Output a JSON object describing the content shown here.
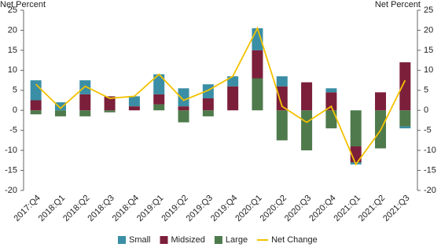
{
  "chart_data": {
    "type": "bar",
    "stacked": true,
    "ylabel": "Net Percent",
    "y2label": "Net Percent",
    "categories": [
      "2017:Q4",
      "2018:Q1",
      "2018:Q2",
      "2018:Q3",
      "2018:Q4",
      "2019:Q1",
      "2019:Q2",
      "2019:Q3",
      "2019:Q4",
      "2020:Q1",
      "2020:Q2",
      "2020:Q3",
      "2020:Q4",
      "2021:Q1",
      "2021:Q2",
      "2021:Q3"
    ],
    "series": [
      {
        "name": "Small",
        "color": "#3a8ea5",
        "values": [
          5,
          2,
          3.5,
          0,
          2.5,
          5,
          4.5,
          3.5,
          2.5,
          5.5,
          2.5,
          0,
          1,
          -0.5,
          0,
          -0.5
        ]
      },
      {
        "name": "Midsized",
        "color": "#7b1f3a",
        "values": [
          2.5,
          0,
          4,
          3.5,
          1,
          2.5,
          1,
          3,
          6,
          7,
          6,
          7,
          4.5,
          -4,
          4.5,
          12
        ]
      },
      {
        "name": "Large",
        "color": "#4e7a4c",
        "values": [
          -1,
          -1.5,
          -1.5,
          -0.5,
          0,
          1.5,
          -3,
          -1.5,
          0,
          8,
          -7.5,
          -10,
          -4.5,
          -9,
          -9.5,
          -4
        ]
      },
      {
        "name": "Net Change",
        "type": "line",
        "color": "#f2c200",
        "values": [
          6.5,
          0.5,
          6,
          3,
          3.5,
          9,
          2.5,
          5,
          8.5,
          20.5,
          1,
          -3,
          1,
          -13.5,
          -5,
          7.5
        ]
      }
    ],
    "ylim": [
      -20,
      25
    ],
    "yticks": [
      -20,
      -15,
      -10,
      -5,
      0,
      5,
      10,
      15,
      20,
      25
    ],
    "y2lim": [
      -20,
      25
    ],
    "y2ticks": [
      -20,
      -15,
      -10,
      -5,
      0,
      5,
      10,
      15,
      20,
      25
    ],
    "grid": false
  }
}
